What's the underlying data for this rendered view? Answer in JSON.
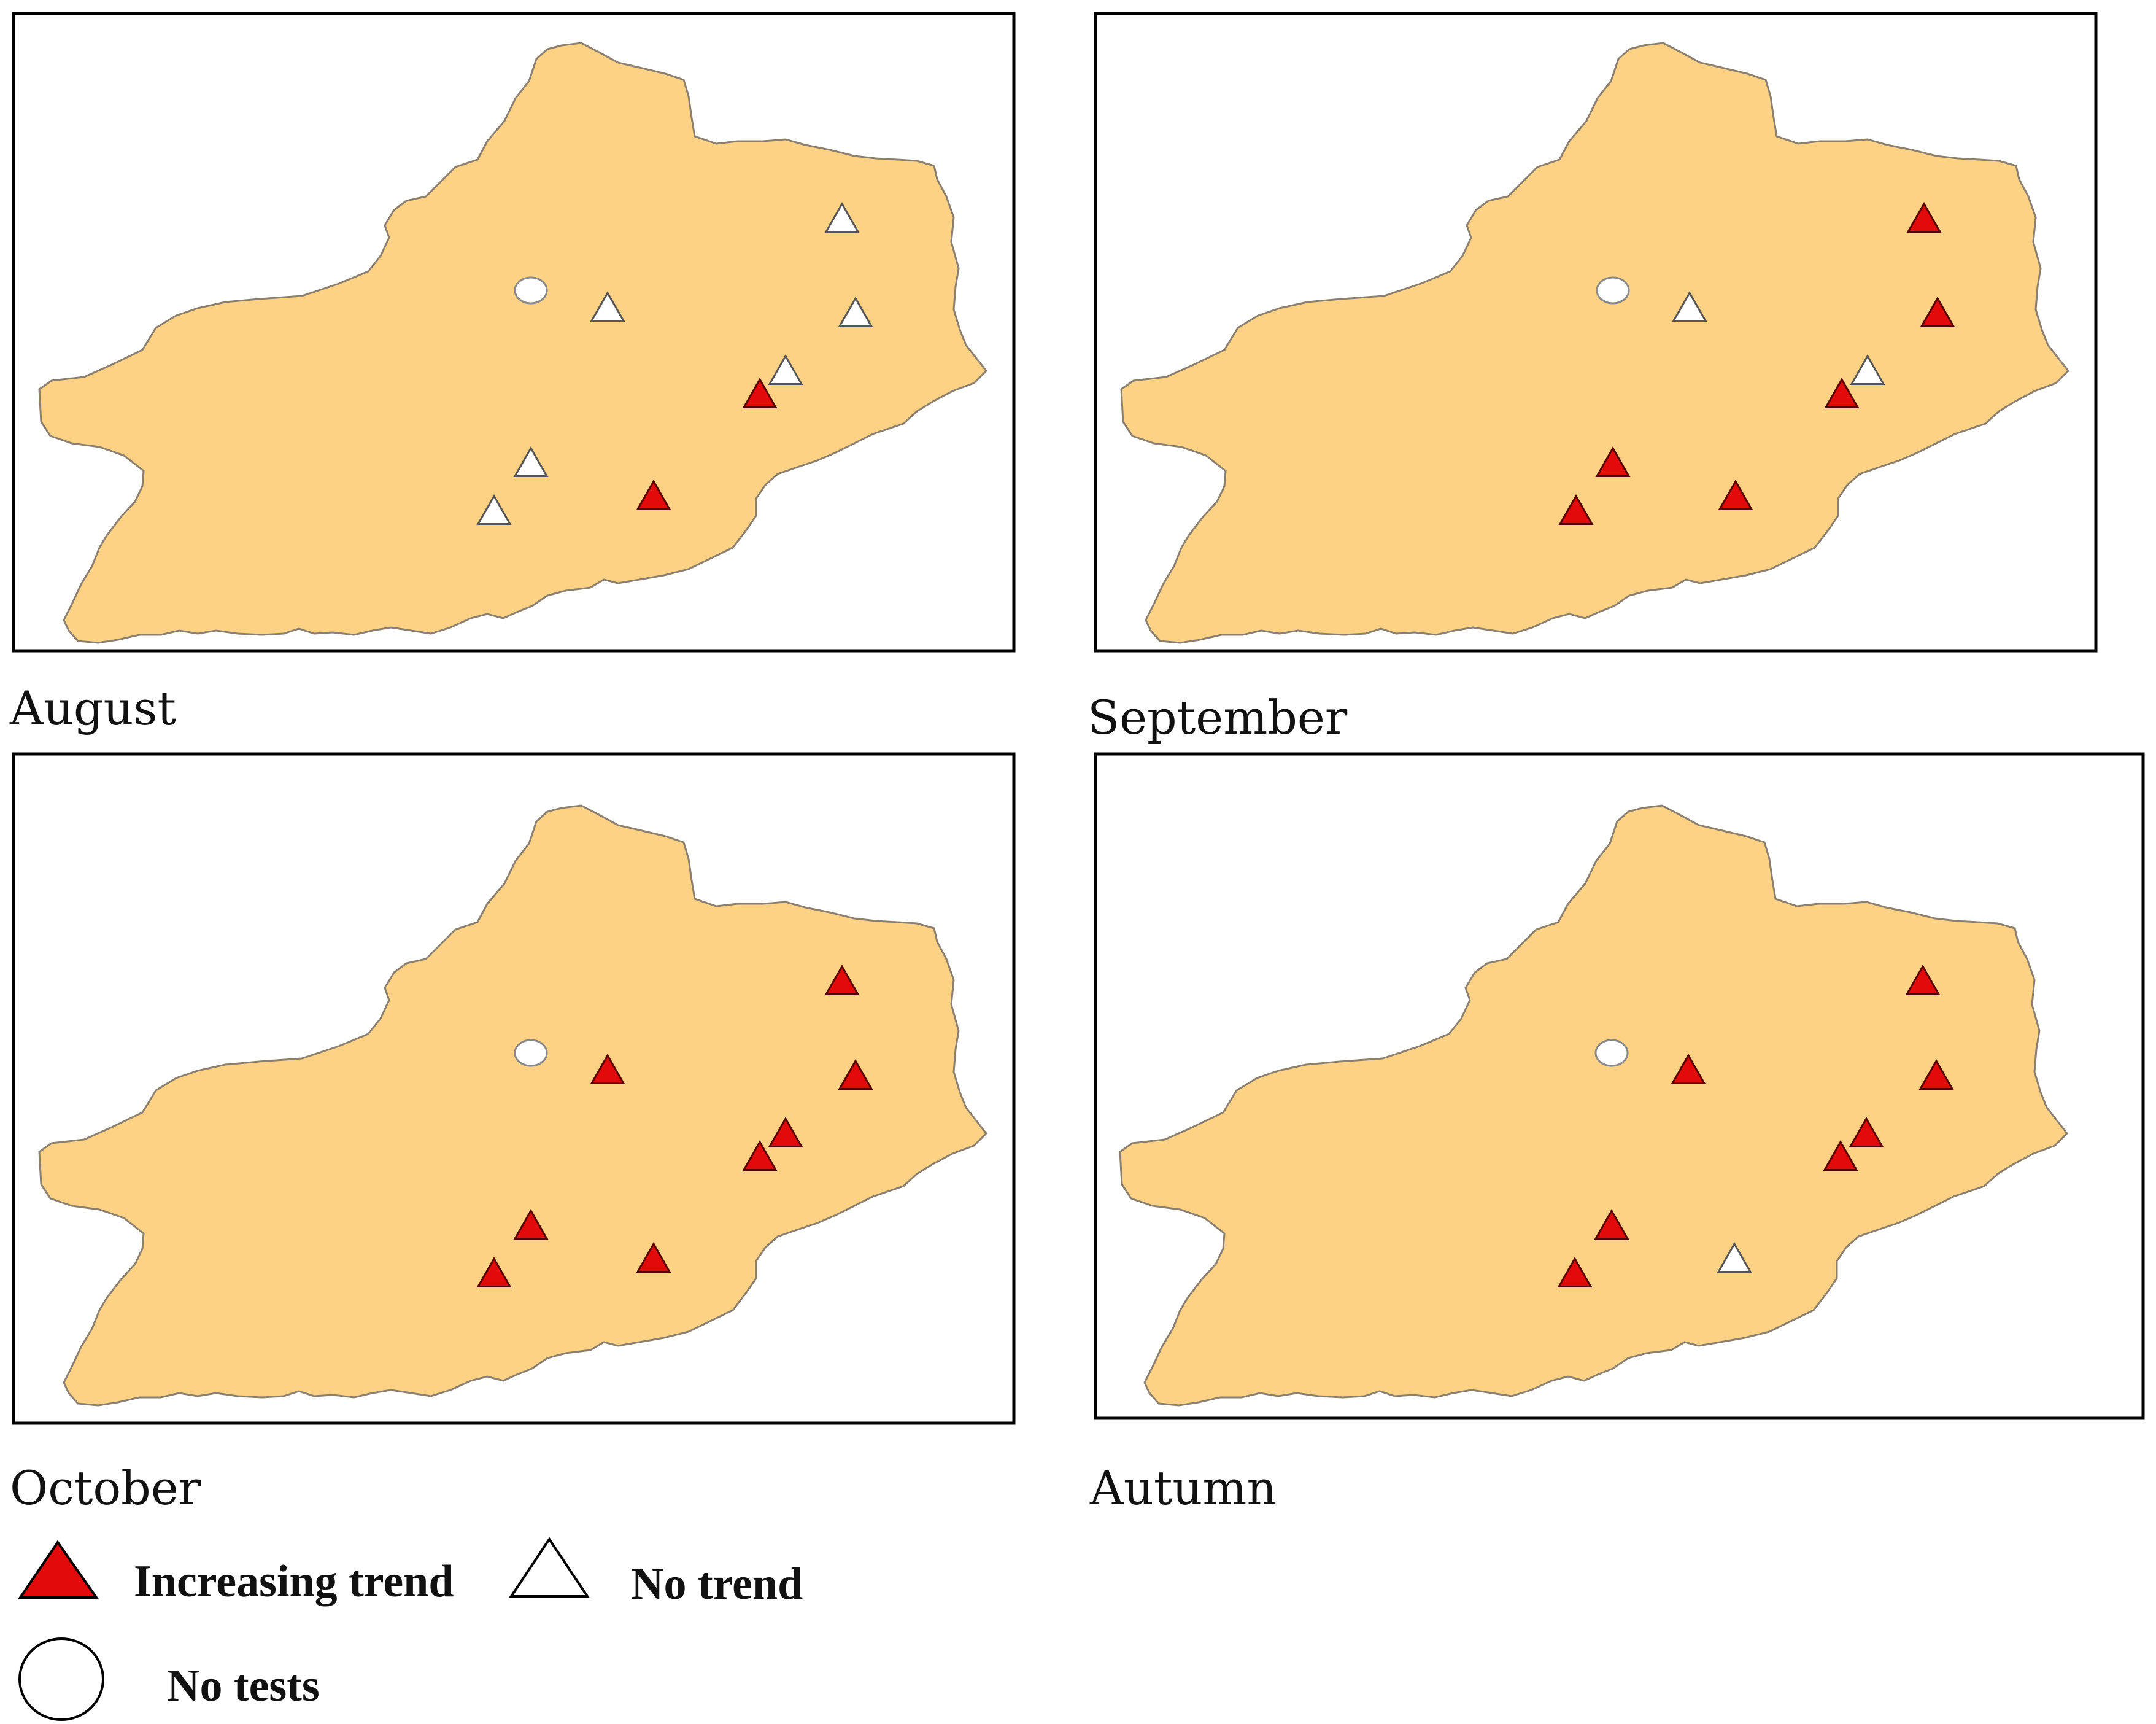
{
  "colors": {
    "basin_fill": "#FDD285",
    "basin_stroke": "#8B7F70",
    "increasing": "#E20A0A",
    "no_trend": "#FFFFFF",
    "no_tests": "#FFFFFF",
    "frame": "#000000"
  },
  "panels": [
    {
      "label": "August",
      "stations": [
        {
          "id": "S1",
          "status": "no_trend"
        },
        {
          "id": "S2",
          "status": "no_trend"
        },
        {
          "id": "S3",
          "status": "no_trend"
        },
        {
          "id": "S4",
          "status": "increasing"
        },
        {
          "id": "S5",
          "status": "no_trend"
        },
        {
          "id": "S6",
          "status": "no_trend"
        },
        {
          "id": "S7",
          "status": "increasing"
        },
        {
          "id": "S8",
          "status": "no_tests"
        },
        {
          "id": "S9",
          "status": "no_trend"
        }
      ]
    },
    {
      "label": "September",
      "stations": [
        {
          "id": "S1",
          "status": "increasing"
        },
        {
          "id": "S2",
          "status": "increasing"
        },
        {
          "id": "S3",
          "status": "no_trend"
        },
        {
          "id": "S4",
          "status": "increasing"
        },
        {
          "id": "S5",
          "status": "increasing"
        },
        {
          "id": "S6",
          "status": "increasing"
        },
        {
          "id": "S7",
          "status": "increasing"
        },
        {
          "id": "S8",
          "status": "no_tests"
        },
        {
          "id": "S9",
          "status": "no_trend"
        }
      ]
    },
    {
      "label": "October",
      "stations": [
        {
          "id": "S1",
          "status": "increasing"
        },
        {
          "id": "S2",
          "status": "increasing"
        },
        {
          "id": "S3",
          "status": "increasing"
        },
        {
          "id": "S4",
          "status": "increasing"
        },
        {
          "id": "S5",
          "status": "increasing"
        },
        {
          "id": "S6",
          "status": "increasing"
        },
        {
          "id": "S7",
          "status": "increasing"
        },
        {
          "id": "S8",
          "status": "no_tests"
        },
        {
          "id": "S9",
          "status": "increasing"
        }
      ]
    },
    {
      "label": "Autumn",
      "stations": [
        {
          "id": "S1",
          "status": "increasing"
        },
        {
          "id": "S2",
          "status": "increasing"
        },
        {
          "id": "S3",
          "status": "increasing"
        },
        {
          "id": "S4",
          "status": "increasing"
        },
        {
          "id": "S5",
          "status": "increasing"
        },
        {
          "id": "S6",
          "status": "increasing"
        },
        {
          "id": "S7",
          "status": "no_trend"
        },
        {
          "id": "S8",
          "status": "no_tests"
        },
        {
          "id": "S9",
          "status": "increasing"
        }
      ]
    }
  ],
  "legend": {
    "increasing_label": "Increasing trend",
    "no_trend_label": "No trend",
    "no_tests_label": "No tests"
  }
}
